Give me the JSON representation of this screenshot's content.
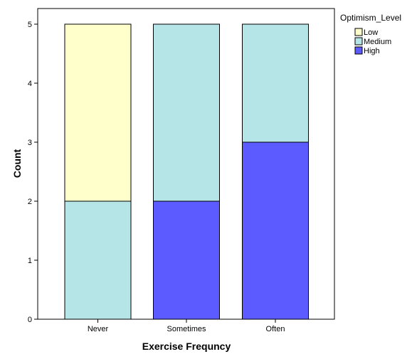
{
  "chart_data": {
    "type": "bar",
    "stacked": true,
    "title": "",
    "xlabel": "Exercise Frequncy",
    "ylabel": "Count",
    "categories": [
      "Never",
      "Sometimes",
      "Often"
    ],
    "ylim": [
      0,
      5
    ],
    "yticks": [
      0,
      1,
      2,
      3,
      4,
      5
    ],
    "grid": false,
    "legend_title": "Optimism_Level",
    "legend_position": "top-right",
    "series": [
      {
        "name": "High",
        "color": "#5b5bff",
        "values": [
          0,
          2,
          3
        ]
      },
      {
        "name": "Medium",
        "color": "#b6e5e7",
        "values": [
          2,
          3,
          2
        ]
      },
      {
        "name": "Low",
        "color": "#ffffcc",
        "values": [
          3,
          0,
          0
        ]
      }
    ],
    "legend_order": [
      "Low",
      "Medium",
      "High"
    ]
  }
}
